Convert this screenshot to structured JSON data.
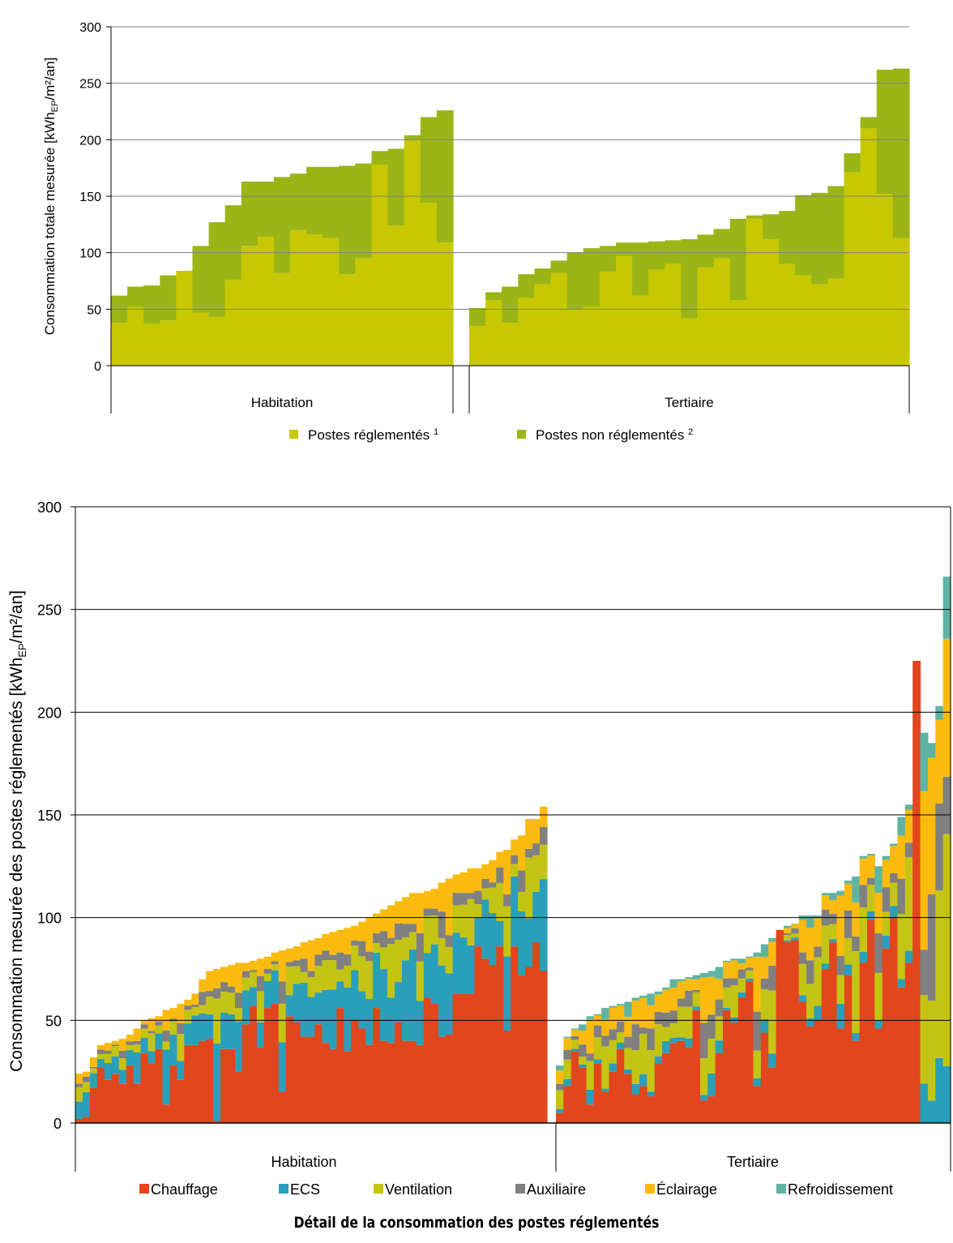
{
  "caption": "Détail de la consommation des postes réglementés",
  "chart_data": [
    {
      "type": "bar",
      "stacked": true,
      "ylabel_parts": [
        "Consommation totale mesurée [kWh",
        "EP",
        "/m²/an]"
      ],
      "ylim": [
        0,
        300
      ],
      "yticks": [
        0,
        50,
        100,
        150,
        200,
        250,
        300
      ],
      "grid": true,
      "legend_position": "bottom",
      "groups": [
        "Habitation",
        "Tertiaire"
      ],
      "legend": [
        {
          "label": "Postes réglementés",
          "sup": "1",
          "color": "#c8c800"
        },
        {
          "label": "Postes non réglementés",
          "sup": "2",
          "color": "#9bb516"
        }
      ],
      "series": [
        {
          "color": "#c8c800",
          "habitation": [
            38,
            52,
            37,
            40,
            84,
            47,
            43,
            76,
            106,
            114,
            82,
            120,
            116,
            113,
            81,
            95,
            178,
            124,
            200,
            144,
            109
          ],
          "tertiaire": [
            35,
            58,
            38,
            60,
            72,
            82,
            50,
            52,
            83,
            97,
            62,
            85,
            90,
            42,
            87,
            95,
            58,
            130,
            112,
            90,
            80,
            72,
            77,
            171,
            210,
            152,
            113
          ]
        },
        {
          "color": "#9bb516",
          "habitation": [
            24,
            18,
            34,
            40,
            0,
            59,
            84,
            66,
            57,
            49,
            85,
            50,
            60,
            63,
            96,
            84,
            12,
            68,
            4,
            76,
            117
          ],
          "tertiaire": [
            16,
            7,
            32,
            21,
            14,
            11,
            50,
            52,
            23,
            12,
            47,
            25,
            21,
            70,
            29,
            26,
            72,
            3,
            22,
            47,
            71,
            81,
            82,
            17,
            10,
            110,
            150
          ]
        }
      ]
    },
    {
      "type": "bar",
      "stacked": true,
      "ylabel_parts": [
        "Consommation mesurée des postes réglementés [kWh",
        "EP",
        "/m²/an]"
      ],
      "ylim": [
        0,
        300
      ],
      "yticks": [
        0,
        50,
        100,
        150,
        200,
        250,
        300
      ],
      "grid": true,
      "legend_position": "bottom",
      "groups": [
        "Habitation",
        "Tertiaire"
      ],
      "legend": [
        {
          "label": "Chauffage",
          "color": "#e2461d"
        },
        {
          "label": "ECS",
          "color": "#2a9fb9"
        },
        {
          "label": "Ventilation",
          "color": "#c4c414"
        },
        {
          "label": "Auxiliaire",
          "color": "#808080"
        },
        {
          "label": "Éclairage",
          "color": "#fbbb0e"
        },
        {
          "label": "Refroidissement",
          "color": "#5fb3a3"
        }
      ],
      "habitation_totals": [
        24,
        25,
        32,
        38,
        39,
        40,
        41,
        43,
        46,
        50,
        51,
        52,
        55,
        56,
        58,
        60,
        63,
        70,
        74,
        75,
        76,
        77,
        78,
        78,
        79,
        80,
        81,
        83,
        84,
        85,
        86,
        88,
        89,
        90,
        92,
        93,
        94,
        95,
        96,
        98,
        100,
        102,
        104,
        106,
        108,
        110,
        112,
        112,
        113,
        114,
        117,
        119,
        121,
        122,
        124,
        124,
        126,
        128,
        132,
        133,
        138,
        140,
        148,
        148,
        154
      ],
      "tertiaire_totals": [
        28,
        42,
        46,
        48,
        52,
        53,
        56,
        57,
        58,
        59,
        61,
        62,
        63,
        64,
        66,
        70,
        70,
        71,
        72,
        73,
        74,
        76,
        79,
        80,
        80,
        81,
        83,
        87,
        90,
        92,
        96,
        97,
        101,
        101,
        101,
        112,
        112,
        113,
        118,
        120,
        130,
        131,
        125,
        130,
        136,
        149,
        155,
        170,
        190,
        185,
        203,
        266
      ],
      "habitation_chauffage": [
        2,
        3,
        17,
        27,
        21,
        24,
        19,
        28,
        19,
        34,
        29,
        36,
        9,
        28,
        21,
        38,
        38,
        40,
        41,
        1,
        36,
        36,
        25,
        48,
        57,
        37,
        56,
        58,
        15,
        52,
        49,
        42,
        42,
        48,
        39,
        36,
        56,
        35,
        50,
        46,
        38,
        56,
        40,
        39,
        49,
        40,
        40,
        38,
        61,
        58,
        42,
        43,
        63,
        63,
        63,
        86,
        80,
        77,
        86,
        45,
        86,
        72,
        76,
        88,
        74
      ],
      "tertiaire_chauffage": [
        5,
        18,
        35,
        27,
        9,
        29,
        15,
        25,
        36,
        24,
        14,
        18,
        13,
        29,
        34,
        39,
        40,
        37,
        55,
        11,
        13,
        34,
        55,
        49,
        61,
        69,
        18,
        44,
        27,
        94,
        88,
        89,
        59,
        47,
        50,
        75,
        88,
        46,
        72,
        40,
        78,
        99,
        46,
        85,
        100,
        66,
        78,
        225,
        0,
        0,
        0,
        0
      ]
    }
  ]
}
